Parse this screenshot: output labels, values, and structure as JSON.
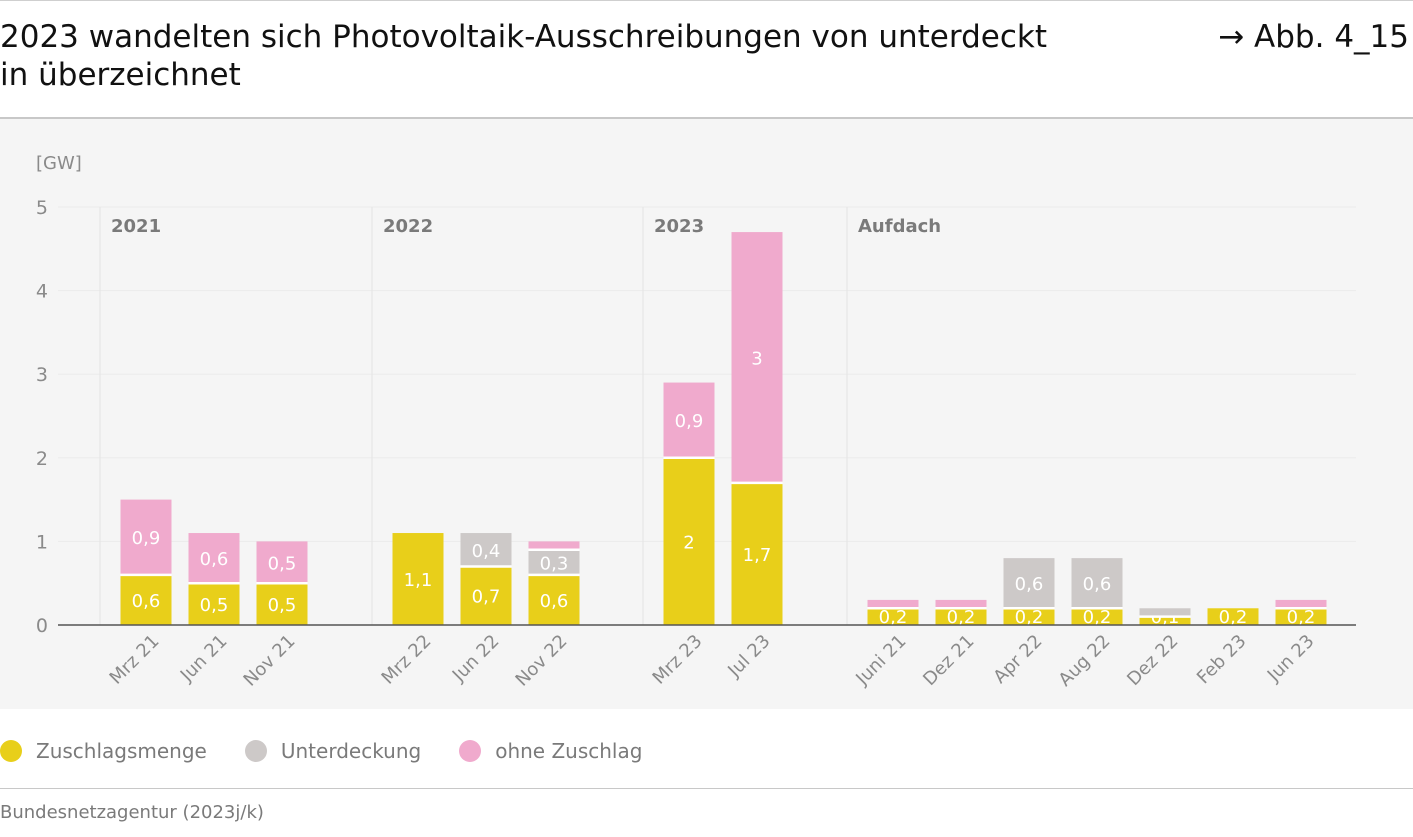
{
  "header": {
    "title": "2023 wandelten sich Photovoltaik-Ausschreibungen von unterdeckt in überzeichnet",
    "figure_ref": "→ Abb. 4_15"
  },
  "legend": [
    {
      "label": "Zuschlagsmenge",
      "color": "#e8cf1a"
    },
    {
      "label": "Unterdeckung",
      "color": "#cdc9c8"
    },
    {
      "label": "ohne Zuschlag",
      "color": "#f0aacd"
    }
  ],
  "source": "Bundesnetzagentur (2023j/k)",
  "chart_data": {
    "type": "bar",
    "stacked": true,
    "ylabel": "[GW]",
    "ylim": [
      0,
      5
    ],
    "yticks": [
      0,
      1,
      2,
      3,
      4,
      5
    ],
    "grid": true,
    "legend_position": "bottom-left",
    "groups": [
      {
        "label": "2021",
        "categories": [
          "Mrz 21",
          "Jun 21",
          "Nov 21"
        ]
      },
      {
        "label": "2022",
        "categories": [
          "Mrz 22",
          "Jun 22",
          "Nov 22"
        ]
      },
      {
        "label": "2023",
        "categories": [
          "Mrz 23",
          "Jul 23"
        ]
      },
      {
        "label": "Aufdach",
        "categories": [
          "Juni 21",
          "Dez 21",
          "Apr 22",
          "Aug 22",
          "Dez 22",
          "Feb 23",
          "Jun 23"
        ]
      }
    ],
    "categories": [
      "Mrz 21",
      "Jun 21",
      "Nov 21",
      "Mrz 22",
      "Jun 22",
      "Nov 22",
      "Mrz 23",
      "Jul 23",
      "Juni 21",
      "Dez 21",
      "Apr 22",
      "Aug 22",
      "Dez 22",
      "Feb 23",
      "Jun 23"
    ],
    "series": [
      {
        "name": "Zuschlagsmenge",
        "color": "#e8cf1a",
        "values": [
          0.6,
          0.5,
          0.5,
          1.1,
          0.7,
          0.6,
          2,
          1.7,
          0.2,
          0.2,
          0.2,
          0.2,
          0.1,
          0.2,
          0.2
        ],
        "labels": [
          "0,6",
          "0,5",
          "0,5",
          "1,1",
          "0,7",
          "0,6",
          "2",
          "1,7",
          "0,2",
          "0,2",
          "0,2",
          "0,2",
          "0,1",
          "0,2",
          "0,2"
        ]
      },
      {
        "name": "Unterdeckung",
        "color": "#cdc9c8",
        "values": [
          0,
          0,
          0,
          0,
          0.4,
          0.3,
          0,
          0,
          0,
          0,
          0.6,
          0.6,
          0.1,
          0,
          0
        ],
        "labels": [
          "",
          "",
          "",
          "",
          "0,4",
          "0,3",
          "",
          "",
          "",
          "",
          "0,6",
          "0,6",
          "",
          "",
          ""
        ]
      },
      {
        "name": "ohne Zuschlag",
        "color": "#f0aacd",
        "values": [
          0.9,
          0.6,
          0.5,
          0,
          0,
          0.1,
          0.9,
          3,
          0.1,
          0.1,
          0,
          0,
          0,
          0,
          0.1
        ],
        "labels": [
          "0,9",
          "0,6",
          "0,5",
          "",
          "",
          "",
          "0,9",
          "3",
          "",
          "",
          "",
          "",
          "",
          "",
          ""
        ]
      }
    ]
  }
}
